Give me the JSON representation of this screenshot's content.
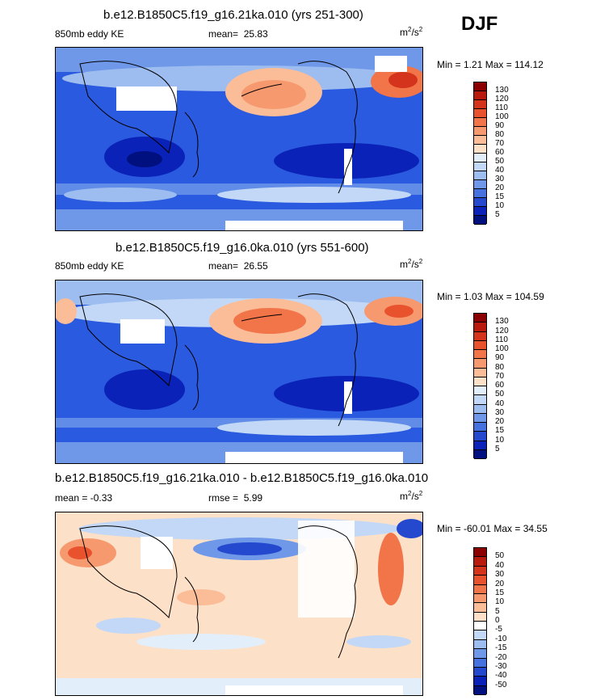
{
  "season": "DJF",
  "units_base": "m",
  "units_exp1": "2",
  "units_sep": "/s",
  "units_exp2": "2",
  "panels": [
    {
      "title": "b.e12.B1850C5.f19_g16.21ka.010 (yrs 251-300)",
      "field_label": "850mb eddy KE",
      "stat_label": "mean=",
      "stat_value": "25.83",
      "minmax": "Min =   1.21 Max = 114.12"
    },
    {
      "title": "b.e12.B1850C5.f19_g16.0ka.010 (yrs 551-600)",
      "field_label": "850mb eddy KE",
      "stat_label": "mean=",
      "stat_value": "26.55",
      "minmax": "Min =   1.03 Max = 104.59"
    },
    {
      "title": "b.e12.B1850C5.f19_g16.21ka.010 - b.e12.B1850C5.f19_g16.0ka.010",
      "field_label": "mean =  -0.33",
      "stat_label": "rmse =",
      "stat_value": "5.99",
      "minmax": "Min = -60.01 Max =  34.55"
    }
  ],
  "colorbar_abs": {
    "labels": [
      "130",
      "120",
      "110",
      "100",
      "90",
      "80",
      "70",
      "60",
      "50",
      "40",
      "30",
      "20",
      "15",
      "10",
      "5"
    ],
    "colors": [
      "#8b0000",
      "#b81a0e",
      "#d4331c",
      "#e8532e",
      "#f27449",
      "#f7996f",
      "#fbbc98",
      "#fde0c8",
      "#e3eefb",
      "#c2d8f6",
      "#9dbdf0",
      "#6f99e8",
      "#4672e0",
      "#2449cf",
      "#0a22b8",
      "#00107f"
    ]
  },
  "colorbar_diff": {
    "labels": [
      "50",
      "40",
      "30",
      "20",
      "15",
      "10",
      "5",
      "0",
      "-5",
      "-10",
      "-15",
      "-20",
      "-30",
      "-40",
      "-50"
    ],
    "colors": [
      "#8b0000",
      "#b81a0e",
      "#d4331c",
      "#e8532e",
      "#f27449",
      "#f7996f",
      "#fbbc98",
      "#fde0c8",
      "#ffffff",
      "#c2d8f6",
      "#9dbdf0",
      "#6f99e8",
      "#4672e0",
      "#2449cf",
      "#0a22b8",
      "#00107f"
    ]
  }
}
